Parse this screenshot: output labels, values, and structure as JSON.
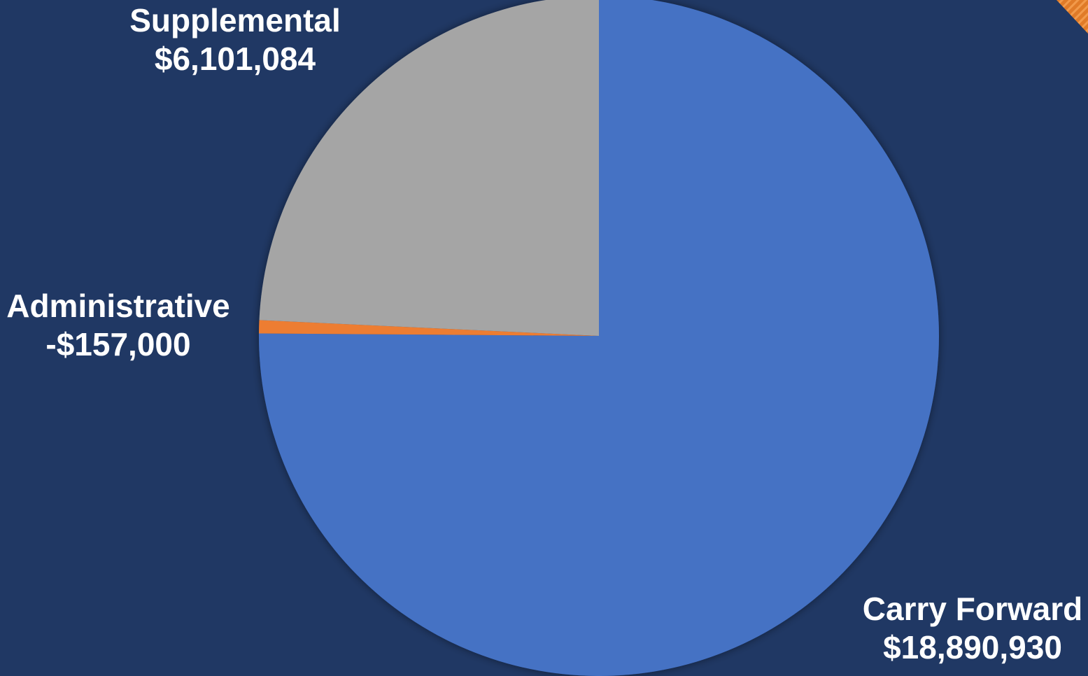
{
  "chart_data": {
    "type": "pie",
    "slices": [
      {
        "name": "Carry Forward",
        "value": 18890930,
        "value_label": "$18,890,930",
        "color": "#4472C4"
      },
      {
        "name": "Administrative",
        "value": -157000,
        "value_label": "-$157,000",
        "color": "#ED7D31"
      },
      {
        "name": "Supplemental",
        "value": 6101084,
        "value_label": "$6,101,084",
        "color": "#A5A5A5"
      }
    ],
    "start_angle": "12 o'clock",
    "direction": "clockwise",
    "legend": "none",
    "data_labels": "outside"
  },
  "colors": {
    "background": "#203864",
    "accent_corner": "#E07B28",
    "label_text": "#FFFFFF"
  }
}
